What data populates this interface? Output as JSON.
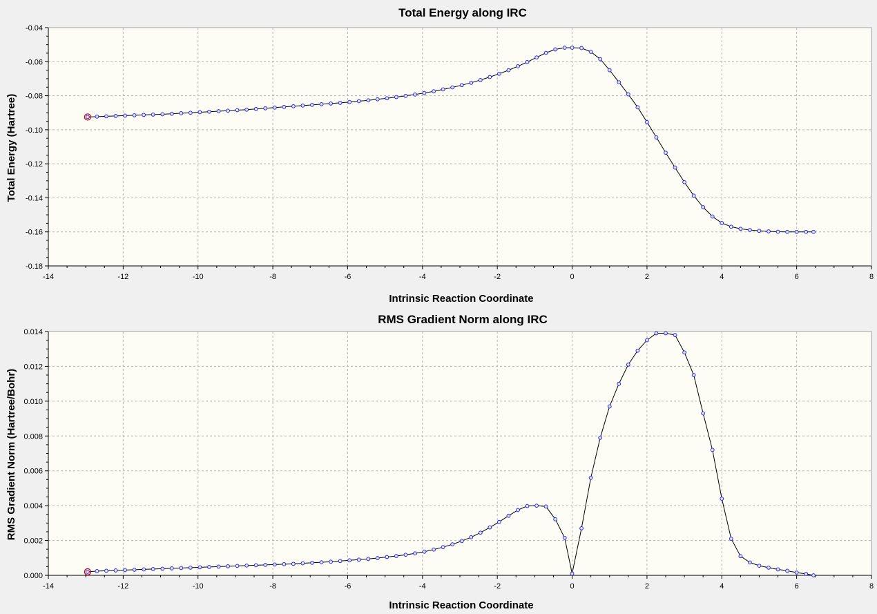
{
  "colors": {
    "background": "#f0f0f0",
    "plot_background": "#fdfdf5",
    "curve": "#000000",
    "point_stroke": "#2b2bdd",
    "point_fill": "#dfe6ff",
    "current_marker": "#cc0000",
    "grid": "#b4b4b4"
  },
  "chart_data": [
    {
      "type": "line",
      "title": "Total Energy along IRC",
      "xlabel": "Intrinsic Reaction Coordinate",
      "ylabel": "Total Energy (Hartree)",
      "xlim": [
        -14,
        8
      ],
      "ylim": [
        -0.18,
        -0.04
      ],
      "xticks": [
        -14,
        -12,
        -10,
        -8,
        -6,
        -4,
        -2,
        0,
        2,
        4,
        6,
        8
      ],
      "yticks": [
        -0.18,
        -0.16,
        -0.14,
        -0.12,
        -0.1,
        -0.08,
        -0.06,
        -0.04
      ],
      "ytick_labels": [
        "-0.18",
        "-0.16",
        "-0.14",
        "-0.12",
        "-0.10",
        "-0.08",
        "-0.06",
        "-0.04"
      ],
      "grid": true,
      "legend": "none",
      "highlight_point_index": 0,
      "x": [
        -12.95,
        -12.7,
        -12.45,
        -12.2,
        -11.95,
        -11.7,
        -11.45,
        -11.2,
        -10.95,
        -10.7,
        -10.45,
        -10.2,
        -9.95,
        -9.7,
        -9.45,
        -9.2,
        -8.95,
        -8.7,
        -8.45,
        -8.2,
        -7.95,
        -7.7,
        -7.45,
        -7.2,
        -6.95,
        -6.7,
        -6.45,
        -6.2,
        -5.95,
        -5.7,
        -5.45,
        -5.2,
        -4.95,
        -4.7,
        -4.45,
        -4.2,
        -3.95,
        -3.7,
        -3.45,
        -3.2,
        -2.95,
        -2.7,
        -2.45,
        -2.2,
        -1.95,
        -1.7,
        -1.45,
        -1.2,
        -0.95,
        -0.7,
        -0.45,
        -0.2,
        0.0,
        0.25,
        0.5,
        0.75,
        1.0,
        1.25,
        1.5,
        1.75,
        2.0,
        2.25,
        2.5,
        2.75,
        3.0,
        3.25,
        3.5,
        3.75,
        4.0,
        4.25,
        4.5,
        4.75,
        5.0,
        5.25,
        5.5,
        5.75,
        6.0,
        6.25,
        6.45
      ],
      "y": [
        -0.0925,
        -0.0923,
        -0.0921,
        -0.0919,
        -0.0917,
        -0.0915,
        -0.0913,
        -0.0911,
        -0.0909,
        -0.0906,
        -0.0903,
        -0.09,
        -0.0897,
        -0.0894,
        -0.0891,
        -0.0888,
        -0.0885,
        -0.0882,
        -0.0878,
        -0.0874,
        -0.087,
        -0.0866,
        -0.0862,
        -0.0858,
        -0.0854,
        -0.085,
        -0.0846,
        -0.0842,
        -0.0837,
        -0.0832,
        -0.0827,
        -0.0821,
        -0.0815,
        -0.0808,
        -0.0801,
        -0.0793,
        -0.0784,
        -0.0774,
        -0.0763,
        -0.0751,
        -0.0738,
        -0.0724,
        -0.0708,
        -0.069,
        -0.0671,
        -0.065,
        -0.0627,
        -0.0602,
        -0.0575,
        -0.0548,
        -0.0528,
        -0.0518,
        -0.0518,
        -0.052,
        -0.0542,
        -0.0585,
        -0.065,
        -0.0721,
        -0.0792,
        -0.0868,
        -0.0955,
        -0.1045,
        -0.1135,
        -0.1222,
        -0.1308,
        -0.1387,
        -0.1455,
        -0.151,
        -0.1548,
        -0.157,
        -0.1582,
        -0.1589,
        -0.1594,
        -0.1597,
        -0.1599,
        -0.16,
        -0.16,
        -0.16,
        -0.16
      ]
    },
    {
      "type": "line",
      "title": "RMS Gradient Norm along IRC",
      "xlabel": "Intrinsic Reaction Coordinate",
      "ylabel": "RMS Gradient Norm (Hartree/Bohr)",
      "xlim": [
        -14,
        8
      ],
      "ylim": [
        0,
        0.014
      ],
      "xticks": [
        -14,
        -12,
        -10,
        -8,
        -6,
        -4,
        -2,
        0,
        2,
        4,
        6,
        8
      ],
      "yticks": [
        0,
        0.002,
        0.004,
        0.006,
        0.008,
        0.01,
        0.012,
        0.014
      ],
      "ytick_labels": [
        "0.000",
        "0.002",
        "0.004",
        "0.006",
        "0.008",
        "0.010",
        "0.012",
        "0.014"
      ],
      "grid": true,
      "legend": "none",
      "highlight_point_index": 0,
      "x": [
        -12.95,
        -12.7,
        -12.45,
        -12.2,
        -11.95,
        -11.7,
        -11.45,
        -11.2,
        -10.95,
        -10.7,
        -10.45,
        -10.2,
        -9.95,
        -9.7,
        -9.45,
        -9.2,
        -8.95,
        -8.7,
        -8.45,
        -8.2,
        -7.95,
        -7.7,
        -7.45,
        -7.2,
        -6.95,
        -6.7,
        -6.45,
        -6.2,
        -5.95,
        -5.7,
        -5.45,
        -5.2,
        -4.95,
        -4.7,
        -4.45,
        -4.2,
        -3.95,
        -3.7,
        -3.45,
        -3.2,
        -2.95,
        -2.7,
        -2.45,
        -2.2,
        -1.95,
        -1.7,
        -1.45,
        -1.2,
        -0.95,
        -0.7,
        -0.45,
        -0.2,
        0.0,
        0.25,
        0.5,
        0.75,
        1.0,
        1.25,
        1.5,
        1.75,
        2.0,
        2.25,
        2.5,
        2.75,
        3.0,
        3.25,
        3.5,
        3.75,
        4.0,
        4.25,
        4.5,
        4.75,
        5.0,
        5.25,
        5.5,
        5.75,
        6.0,
        6.25,
        6.45
      ],
      "y": [
        0.0002,
        0.00024,
        0.00026,
        0.00028,
        0.0003,
        0.00032,
        0.00034,
        0.00036,
        0.00038,
        0.0004,
        0.00042,
        0.00044,
        0.00046,
        0.00048,
        0.0005,
        0.00052,
        0.00054,
        0.00056,
        0.00058,
        0.0006,
        0.00062,
        0.00064,
        0.00066,
        0.00069,
        0.00072,
        0.00075,
        0.00078,
        0.00082,
        0.00086,
        0.0009,
        0.00094,
        0.00099,
        0.00105,
        0.00111,
        0.00118,
        0.00126,
        0.00136,
        0.00148,
        0.00162,
        0.00178,
        0.00197,
        0.00219,
        0.00245,
        0.00275,
        0.00307,
        0.00342,
        0.00375,
        0.00398,
        0.004,
        0.00395,
        0.00322,
        0.00215,
        0.0001,
        0.0027,
        0.0056,
        0.0079,
        0.0097,
        0.011,
        0.0121,
        0.0129,
        0.0135,
        0.0139,
        0.0139,
        0.0138,
        0.0128,
        0.0115,
        0.0093,
        0.0072,
        0.0044,
        0.0021,
        0.0011,
        0.00074,
        0.00055,
        0.00044,
        0.00034,
        0.00026,
        0.00016,
        8e-05,
        0.0
      ]
    }
  ]
}
